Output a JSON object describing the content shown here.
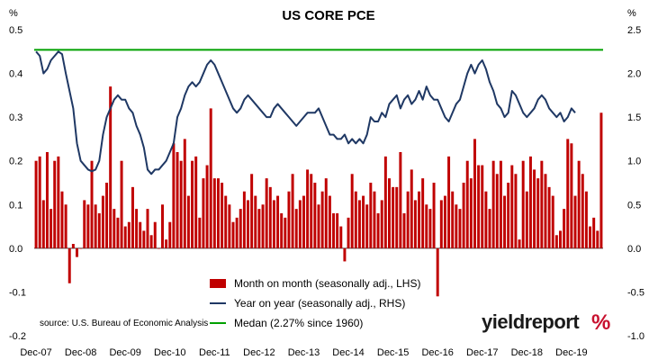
{
  "chart_data": {
    "type": "bar+line",
    "title": "US CORE PCE",
    "left_axis": {
      "unit": "%",
      "ylim": [
        -0.2,
        0.5
      ],
      "ticks": [
        "0.5",
        "0.4",
        "0.3",
        "0.2",
        "0.1",
        "0.0",
        "-0.1",
        "-0.2"
      ]
    },
    "right_axis": {
      "unit": "%",
      "ylim": [
        -1.0,
        2.5
      ],
      "ticks": [
        "2.5",
        "2.0",
        "1.5",
        "1.0",
        "0.5",
        "0.0",
        "-0.5",
        "-1.0"
      ]
    },
    "x_tick_labels": [
      "Dec-07",
      "Dec-08",
      "Dec-09",
      "Dec-10",
      "Dec-11",
      "Dec-12",
      "Dec-13",
      "Dec-14",
      "Dec-15",
      "Dec-16",
      "Dec-17",
      "Dec-18",
      "Dec-19"
    ],
    "months_start": "Dec-07",
    "series": [
      {
        "name": "Month on month (seasonally adj., LHS)",
        "type": "bar",
        "color": "#c00000",
        "axis": "left",
        "values": [
          0.2,
          0.21,
          0.11,
          0.22,
          0.09,
          0.2,
          0.21,
          0.13,
          0.1,
          -0.08,
          0.01,
          -0.02,
          0.0,
          0.11,
          0.1,
          0.2,
          0.1,
          0.08,
          0.12,
          0.15,
          0.37,
          0.09,
          0.07,
          0.2,
          0.05,
          0.06,
          0.14,
          0.09,
          0.06,
          0.04,
          0.09,
          0.03,
          0.06,
          0.0,
          0.1,
          0.02,
          0.06,
          0.24,
          0.22,
          0.2,
          0.25,
          0.12,
          0.2,
          0.21,
          0.07,
          0.16,
          0.19,
          0.32,
          0.16,
          0.16,
          0.15,
          0.12,
          0.1,
          0.06,
          0.07,
          0.09,
          0.13,
          0.11,
          0.17,
          0.12,
          0.09,
          0.1,
          0.16,
          0.14,
          0.11,
          0.12,
          0.08,
          0.07,
          0.13,
          0.17,
          0.09,
          0.11,
          0.12,
          0.18,
          0.17,
          0.15,
          0.1,
          0.13,
          0.16,
          0.12,
          0.08,
          0.08,
          0.05,
          -0.03,
          0.07,
          0.17,
          0.13,
          0.11,
          0.12,
          0.1,
          0.15,
          0.13,
          0.08,
          0.11,
          0.21,
          0.16,
          0.14,
          0.14,
          0.22,
          0.08,
          0.13,
          0.18,
          0.11,
          0.13,
          0.16,
          0.1,
          0.09,
          0.15,
          -0.11,
          0.11,
          0.12,
          0.21,
          0.13,
          0.1,
          0.09,
          0.15,
          0.2,
          0.16,
          0.25,
          0.19,
          0.19,
          0.13,
          0.09,
          0.2,
          0.17,
          0.2,
          0.12,
          0.15,
          0.19,
          0.17,
          0.02,
          0.2,
          0.13,
          0.21,
          0.18,
          0.16,
          0.2,
          0.17,
          0.14,
          0.12,
          0.03,
          0.04,
          0.09,
          0.25,
          0.24,
          0.12,
          0.2,
          0.17,
          0.13,
          0.05,
          0.07,
          0.04,
          0.31
        ]
      },
      {
        "name": "Year on year (seasonally adj., RHS)",
        "type": "line",
        "color": "#1f3864",
        "axis": "right",
        "values": [
          2.25,
          2.2,
          2.0,
          2.05,
          2.15,
          2.2,
          2.25,
          2.22,
          2.0,
          1.8,
          1.6,
          1.2,
          1.0,
          0.95,
          0.9,
          0.88,
          0.9,
          1.0,
          1.3,
          1.5,
          1.6,
          1.7,
          1.75,
          1.7,
          1.7,
          1.6,
          1.55,
          1.4,
          1.3,
          1.15,
          0.9,
          0.85,
          0.9,
          0.9,
          0.95,
          1.0,
          1.1,
          1.2,
          1.5,
          1.6,
          1.75,
          1.85,
          1.9,
          1.85,
          1.9,
          2.0,
          2.1,
          2.15,
          2.1,
          2.0,
          1.9,
          1.8,
          1.7,
          1.6,
          1.55,
          1.6,
          1.7,
          1.75,
          1.7,
          1.65,
          1.6,
          1.55,
          1.5,
          1.5,
          1.6,
          1.65,
          1.6,
          1.55,
          1.5,
          1.45,
          1.4,
          1.45,
          1.5,
          1.55,
          1.55,
          1.55,
          1.6,
          1.5,
          1.4,
          1.3,
          1.3,
          1.25,
          1.25,
          1.3,
          1.2,
          1.25,
          1.2,
          1.25,
          1.2,
          1.3,
          1.5,
          1.45,
          1.45,
          1.55,
          1.5,
          1.65,
          1.7,
          1.75,
          1.6,
          1.7,
          1.75,
          1.65,
          1.7,
          1.8,
          1.7,
          1.85,
          1.75,
          1.7,
          1.7,
          1.6,
          1.5,
          1.45,
          1.55,
          1.65,
          1.7,
          1.85,
          2.0,
          2.1,
          2.0,
          2.1,
          2.15,
          2.05,
          1.9,
          1.8,
          1.65,
          1.6,
          1.5,
          1.55,
          1.8,
          1.75,
          1.65,
          1.55,
          1.5,
          1.55,
          1.6,
          1.7,
          1.75,
          1.7,
          1.6,
          1.55,
          1.5,
          1.55,
          1.45,
          1.5,
          1.6,
          1.55
        ]
      },
      {
        "name": "Medan (2.27% since 1960)",
        "type": "line",
        "color": "#00a000",
        "axis": "right",
        "values": [
          2.27
        ]
      }
    ],
    "legend_position": "bottom-center"
  },
  "source_text": "source: U.S. Bureau of Economic Analysis",
  "logo": {
    "text": "yieldreport",
    "pct": "%"
  }
}
